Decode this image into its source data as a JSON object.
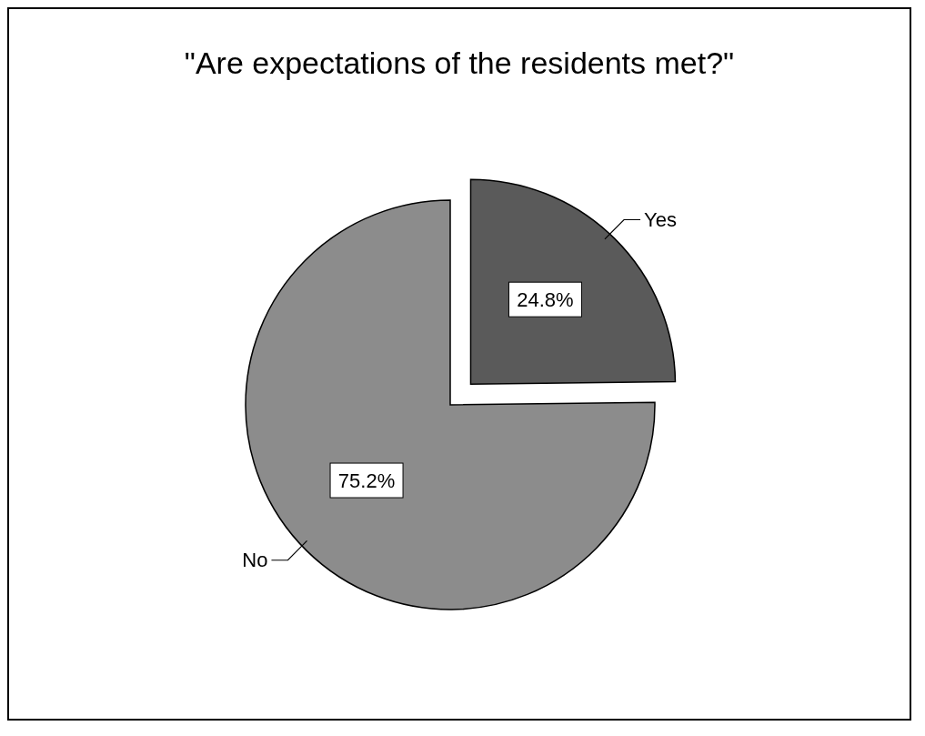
{
  "chart_data": {
    "type": "pie",
    "title": "\"Are expectations of the residents met?\"",
    "categories": [
      "Yes",
      "No"
    ],
    "values": [
      24.8,
      75.2
    ],
    "colors": [
      "#5a5a5a",
      "#8c8c8c"
    ],
    "value_labels": [
      "24.8%",
      "75.2%"
    ],
    "legend": false
  }
}
